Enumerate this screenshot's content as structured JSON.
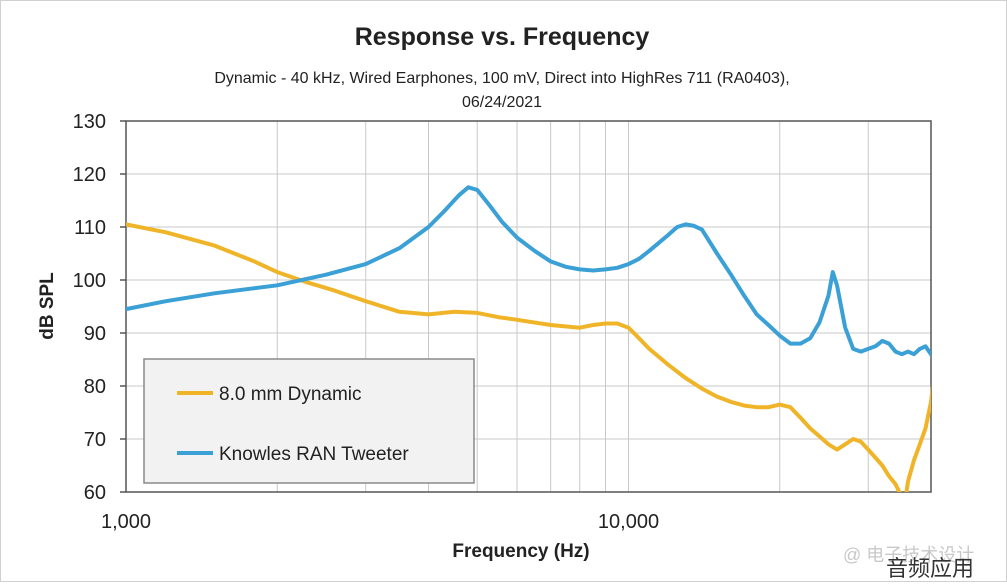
{
  "chart_data": {
    "type": "line",
    "title": "Response vs. Frequency",
    "subtitle_lines": [
      "Dynamic - 40 kHz,  Wired Earphones, 100 mV, Direct into HighRes 711 (RA0403),",
      "06/24/2021"
    ],
    "xlabel": "Frequency (Hz)",
    "ylabel": "dB SPL",
    "x_scale": "log",
    "xlim": [
      1000,
      40000
    ],
    "ylim": [
      60,
      130
    ],
    "x_tick_labels": [
      {
        "value": 1000,
        "label": "1,000"
      },
      {
        "value": 10000,
        "label": "10,000"
      }
    ],
    "y_tick_labels": [
      {
        "value": 60,
        "label": "60"
      },
      {
        "value": 70,
        "label": "70"
      },
      {
        "value": 80,
        "label": "80"
      },
      {
        "value": 90,
        "label": "90"
      },
      {
        "value": 100,
        "label": "100"
      },
      {
        "value": 110,
        "label": "110"
      },
      {
        "value": 120,
        "label": "120"
      },
      {
        "value": 130,
        "label": "130"
      }
    ],
    "grid": true,
    "legend_position": "lower-left",
    "series": [
      {
        "name": "8.0 mm Dynamic",
        "color": "#f0b428",
        "points": [
          [
            1000,
            110.5
          ],
          [
            1200,
            109
          ],
          [
            1500,
            106.5
          ],
          [
            1800,
            103.5
          ],
          [
            2000,
            101.5
          ],
          [
            2300,
            99.5
          ],
          [
            2600,
            98
          ],
          [
            3000,
            96
          ],
          [
            3500,
            94
          ],
          [
            4000,
            93.5
          ],
          [
            4500,
            94
          ],
          [
            5000,
            93.8
          ],
          [
            5500,
            93
          ],
          [
            6000,
            92.5
          ],
          [
            7000,
            91.5
          ],
          [
            8000,
            91
          ],
          [
            8500,
            91.5
          ],
          [
            9000,
            91.8
          ],
          [
            9500,
            91.8
          ],
          [
            10000,
            91
          ],
          [
            10500,
            89
          ],
          [
            11000,
            87
          ],
          [
            12000,
            84
          ],
          [
            13000,
            81.5
          ],
          [
            14000,
            79.5
          ],
          [
            15000,
            78
          ],
          [
            16000,
            77
          ],
          [
            17000,
            76.3
          ],
          [
            18000,
            76
          ],
          [
            19000,
            76
          ],
          [
            20000,
            76.5
          ],
          [
            21000,
            76
          ],
          [
            22000,
            74
          ],
          [
            23000,
            72
          ],
          [
            24000,
            70.5
          ],
          [
            25000,
            69
          ],
          [
            26000,
            68
          ],
          [
            27000,
            69
          ],
          [
            28000,
            70
          ],
          [
            29000,
            69.5
          ],
          [
            30000,
            68
          ],
          [
            31000,
            66.5
          ],
          [
            32000,
            65
          ],
          [
            33000,
            63
          ],
          [
            34000,
            61.5
          ],
          [
            35000,
            59
          ],
          [
            35500,
            58
          ],
          [
            36000,
            62
          ],
          [
            37000,
            66
          ],
          [
            38000,
            69
          ],
          [
            39000,
            72
          ],
          [
            40000,
            77
          ],
          [
            40500,
            81.5
          ],
          [
            41000,
            83.5
          ]
        ]
      },
      {
        "name": "Knowles RAN Tweeter",
        "color": "#3aa0d6",
        "points": [
          [
            1000,
            94.5
          ],
          [
            1200,
            96
          ],
          [
            1500,
            97.5
          ],
          [
            2000,
            99
          ],
          [
            2500,
            101
          ],
          [
            3000,
            103
          ],
          [
            3500,
            106
          ],
          [
            4000,
            110
          ],
          [
            4300,
            113
          ],
          [
            4600,
            116
          ],
          [
            4800,
            117.5
          ],
          [
            5000,
            117
          ],
          [
            5300,
            114
          ],
          [
            5600,
            111
          ],
          [
            6000,
            108
          ],
          [
            6500,
            105.5
          ],
          [
            7000,
            103.5
          ],
          [
            7500,
            102.5
          ],
          [
            8000,
            102
          ],
          [
            8500,
            101.8
          ],
          [
            9000,
            102
          ],
          [
            9500,
            102.3
          ],
          [
            10000,
            103
          ],
          [
            10500,
            104
          ],
          [
            11000,
            105.5
          ],
          [
            12000,
            108.5
          ],
          [
            12500,
            110
          ],
          [
            13000,
            110.5
          ],
          [
            13500,
            110.2
          ],
          [
            14000,
            109.5
          ],
          [
            15000,
            105
          ],
          [
            16000,
            101
          ],
          [
            17000,
            97
          ],
          [
            18000,
            93.5
          ],
          [
            19000,
            91.5
          ],
          [
            20000,
            89.5
          ],
          [
            21000,
            88
          ],
          [
            22000,
            88
          ],
          [
            23000,
            89
          ],
          [
            24000,
            92
          ],
          [
            25000,
            97
          ],
          [
            25500,
            101.5
          ],
          [
            26000,
            99
          ],
          [
            27000,
            91
          ],
          [
            28000,
            87
          ],
          [
            29000,
            86.5
          ],
          [
            30000,
            87
          ],
          [
            31000,
            87.5
          ],
          [
            32000,
            88.5
          ],
          [
            33000,
            88
          ],
          [
            34000,
            86.5
          ],
          [
            35000,
            86
          ],
          [
            36000,
            86.5
          ],
          [
            37000,
            86
          ],
          [
            38000,
            87
          ],
          [
            39000,
            87.5
          ],
          [
            40000,
            86
          ],
          [
            41000,
            84
          ],
          [
            42000,
            83.3
          ],
          [
            43000,
            83
          ]
        ]
      }
    ]
  },
  "watermark": {
    "faint_text": "@ 电子技术设计",
    "text": "音频应用"
  }
}
